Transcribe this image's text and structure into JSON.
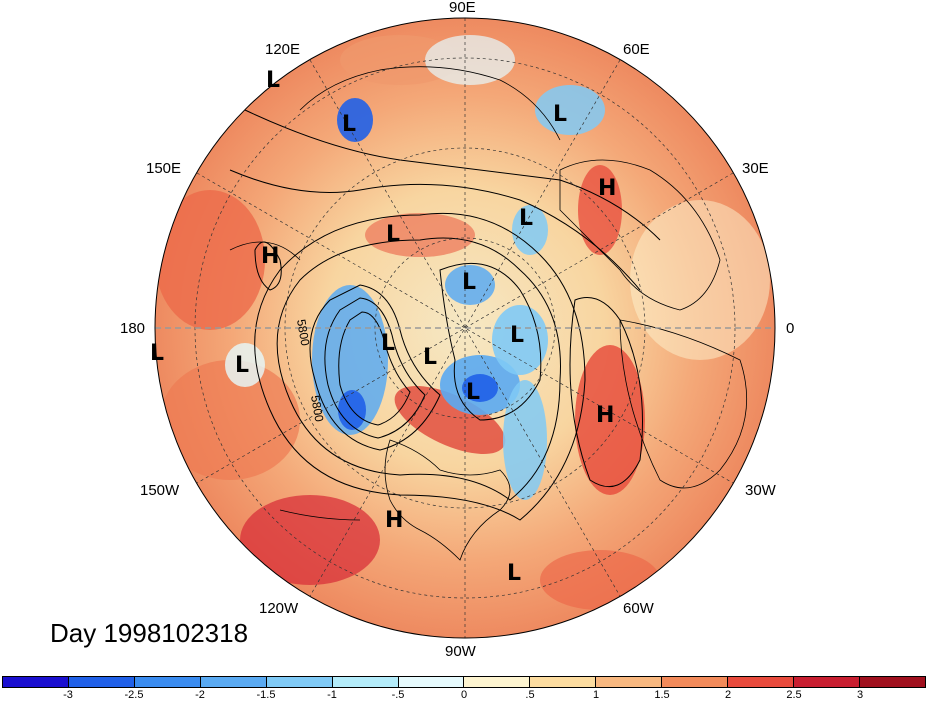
{
  "day_label": "Day 1998102318",
  "contour_labels": [
    "5800",
    "5800"
  ],
  "lon_labels": {
    "e90": "90E",
    "e60": "60E",
    "e120": "120E",
    "e30": "30E",
    "e150": "150E",
    "lon180": "180",
    "lon0": "0",
    "w150": "150W",
    "w30": "30W",
    "w120": "120W",
    "w60": "60W",
    "w90": "90W"
  },
  "pressure_centers": [
    "L",
    "L",
    "L",
    "H",
    "L",
    "L",
    "H",
    "L",
    "L",
    "L",
    "L",
    "L",
    "L",
    "H",
    "L",
    "H",
    "L"
  ],
  "colorbar": {
    "ticks": [
      "-3",
      "-2.5",
      "-2",
      "-1.5",
      "-1",
      "-.5",
      "0",
      ".5",
      "1",
      "1.5",
      "2",
      "2.5",
      "3"
    ],
    "colors": [
      "#1a0fd0",
      "#2060e8",
      "#3a8cf0",
      "#5aaaf2",
      "#80caf6",
      "#b4ecfa",
      "#e6fafd",
      "#fdf4d0",
      "#fcdca0",
      "#f8b880",
      "#f28a5a",
      "#e84a3c",
      "#c81e30",
      "#a0101e"
    ]
  }
}
